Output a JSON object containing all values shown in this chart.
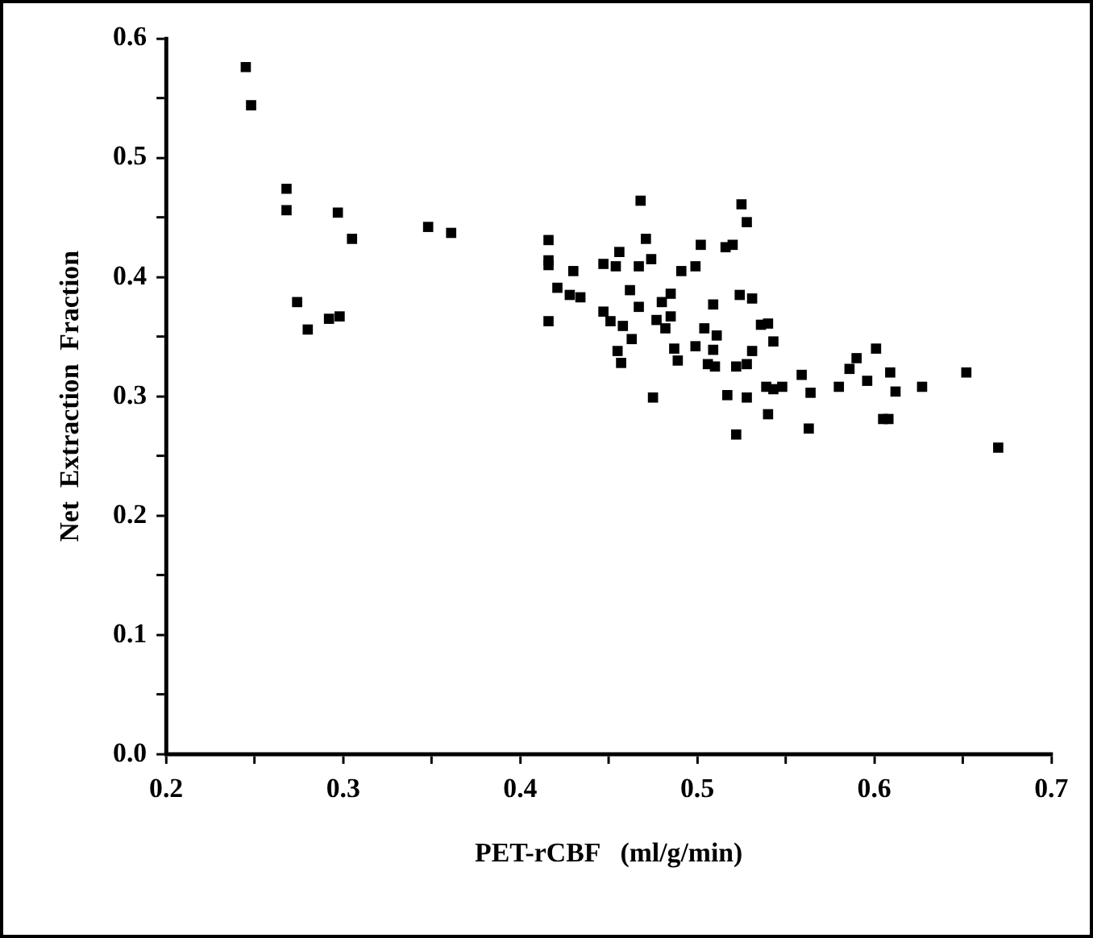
{
  "chart_data": {
    "type": "scatter",
    "xlabel": "PET-rCBF   (ml/g/min)",
    "ylabel": "Net  Extraction  Fraction",
    "xlim": [
      0.2,
      0.7
    ],
    "xticks": [
      0.2,
      {
        "value": 0.25,
        "label": null
      },
      0.3,
      {
        "value": 0.35,
        "label": null
      },
      0.4,
      {
        "value": 0.45,
        "label": null
      },
      0.5,
      {
        "value": 0.55,
        "label": null
      },
      0.6,
      {
        "value": 0.65,
        "label": null
      },
      0.7
    ],
    "ylim": [
      0,
      0.6
    ],
    "yticks": [
      {
        "value": 0,
        "label": "0.0"
      },
      {
        "value": 0.05,
        "label": null
      },
      0.1,
      {
        "value": 0.15,
        "label": null
      },
      0.2,
      {
        "value": 0.25,
        "label": null
      },
      0.3,
      {
        "value": 0.35,
        "label": null
      },
      0.4,
      {
        "value": 0.45,
        "label": null
      },
      0.5,
      {
        "value": 0.55,
        "label": null
      },
      0.6
    ],
    "grid": false,
    "legend": false,
    "marker": "square",
    "series": [
      {
        "color": "#000000",
        "x": [
          0.245,
          0.248,
          0.268,
          0.268,
          0.297,
          0.305,
          0.274,
          0.28,
          0.292,
          0.298,
          0.348,
          0.361,
          0.416,
          0.416,
          0.416,
          0.43,
          0.421,
          0.428,
          0.434,
          0.416,
          0.447,
          0.456,
          0.454,
          0.447,
          0.451,
          0.458,
          0.455,
          0.457,
          0.462,
          0.468,
          0.525,
          0.528,
          0.471,
          0.502,
          0.516,
          0.52,
          0.474,
          0.467,
          0.491,
          0.499,
          0.467,
          0.485,
          0.48,
          0.477,
          0.485,
          0.482,
          0.509,
          0.524,
          0.531,
          0.463,
          0.504,
          0.511,
          0.487,
          0.489,
          0.499,
          0.509,
          0.506,
          0.51,
          0.522,
          0.528,
          0.531,
          0.536,
          0.54,
          0.543,
          0.475,
          0.517,
          0.528,
          0.54,
          0.522,
          0.539,
          0.543,
          0.548,
          0.559,
          0.564,
          0.563,
          0.58,
          0.586,
          0.59,
          0.596,
          0.601,
          0.609,
          0.612,
          0.605,
          0.608,
          0.627,
          0.652,
          0.67
        ],
        "values": [
          0.576,
          0.544,
          0.474,
          0.456,
          0.454,
          0.432,
          0.379,
          0.356,
          0.365,
          0.367,
          0.442,
          0.437,
          0.431,
          0.414,
          0.41,
          0.405,
          0.391,
          0.385,
          0.383,
          0.363,
          0.411,
          0.421,
          0.409,
          0.371,
          0.363,
          0.359,
          0.338,
          0.328,
          0.389,
          0.464,
          0.461,
          0.446,
          0.432,
          0.427,
          0.425,
          0.427,
          0.415,
          0.409,
          0.405,
          0.409,
          0.375,
          0.386,
          0.379,
          0.364,
          0.367,
          0.357,
          0.377,
          0.385,
          0.382,
          0.348,
          0.357,
          0.351,
          0.34,
          0.33,
          0.342,
          0.339,
          0.327,
          0.325,
          0.325,
          0.327,
          0.338,
          0.36,
          0.361,
          0.346,
          0.299,
          0.301,
          0.299,
          0.285,
          0.268,
          0.308,
          0.306,
          0.308,
          0.318,
          0.303,
          0.273,
          0.308,
          0.323,
          0.332,
          0.313,
          0.34,
          0.32,
          0.304,
          0.281,
          0.281,
          0.308,
          0.32,
          0.257
        ]
      }
    ]
  }
}
